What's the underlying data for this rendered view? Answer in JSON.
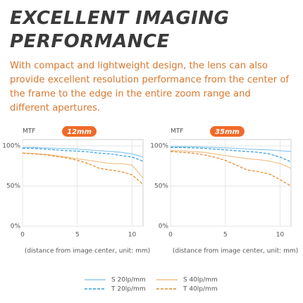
{
  "header": {
    "title": "EXCELLENT IMAGING PERFORMANCE",
    "text": "With compact and lightweight design, the lens can also provide excellent resolution performance from the center of the frame to the edge in the entire zoom range and different apertures."
  },
  "chart_data": [
    {
      "type": "line",
      "ylabel": "MTF",
      "badge": "12mm",
      "xlabel": "(distance from image center, unit: mm)",
      "x": [
        0,
        1,
        2,
        3,
        4,
        5,
        6,
        7,
        8,
        9,
        10,
        11
      ],
      "xlim": [
        0,
        11
      ],
      "xticks": [
        0,
        5,
        10
      ],
      "ylim": [
        0,
        100
      ],
      "yticks": [
        {
          "value": 0,
          "label": "0%"
        },
        {
          "value": 50,
          "label": "50%"
        },
        {
          "value": 100,
          "label": "100%"
        }
      ],
      "grid": true,
      "series": [
        {
          "name": "S 20lp/mm",
          "color": "#8cc8ee",
          "dashed": false,
          "values": [
            98,
            98,
            97.5,
            97,
            96.5,
            96,
            95,
            94,
            93,
            92,
            90,
            86
          ]
        },
        {
          "name": "T 20lp/mm",
          "color": "#2f9de0",
          "dashed": true,
          "values": [
            97,
            97,
            96,
            95,
            94,
            93.5,
            92.5,
            91,
            90,
            88,
            86,
            81
          ]
        },
        {
          "name": "S 40lp/mm",
          "color": "#f2c08a",
          "dashed": false,
          "values": [
            91,
            90.5,
            89.5,
            88,
            86,
            84,
            82,
            80,
            78,
            78,
            76,
            60
          ]
        },
        {
          "name": "T 40lp/mm",
          "color": "#e08a25",
          "dashed": true,
          "values": [
            91,
            90,
            89,
            87,
            85,
            82,
            78,
            72,
            70,
            68,
            64,
            52
          ]
        }
      ]
    },
    {
      "type": "line",
      "ylabel": "MTF",
      "badge": "35mm",
      "xlabel": "(distance from image center, unit: mm)",
      "x": [
        0,
        1,
        2,
        3,
        4,
        5,
        6,
        7,
        8,
        9,
        10,
        11
      ],
      "xlim": [
        0,
        11
      ],
      "xticks": [
        0,
        5,
        10
      ],
      "ylim": [
        0,
        100
      ],
      "yticks": [
        {
          "value": 0,
          "label": "0%"
        },
        {
          "value": 50,
          "label": "50%"
        },
        {
          "value": 100,
          "label": "100%"
        }
      ],
      "grid": true,
      "series": [
        {
          "color": "#8cc8ee",
          "dashed": false,
          "values": [
            99,
            99,
            99,
            98.5,
            98,
            97.5,
            97,
            96,
            95.5,
            95,
            94,
            93
          ]
        },
        {
          "color": "#2f9de0",
          "dashed": true,
          "values": [
            98,
            98,
            97.5,
            97,
            96,
            95,
            94,
            93,
            92,
            90,
            86,
            80
          ]
        },
        {
          "color": "#f2c08a",
          "dashed": false,
          "values": [
            94,
            94,
            93,
            92,
            90,
            88,
            86,
            84,
            83,
            81,
            78,
            72
          ]
        },
        {
          "color": "#e08a25",
          "dashed": true,
          "values": [
            93,
            92,
            91,
            89,
            86,
            82,
            76,
            70,
            68,
            65,
            58,
            50
          ]
        }
      ]
    }
  ]
}
